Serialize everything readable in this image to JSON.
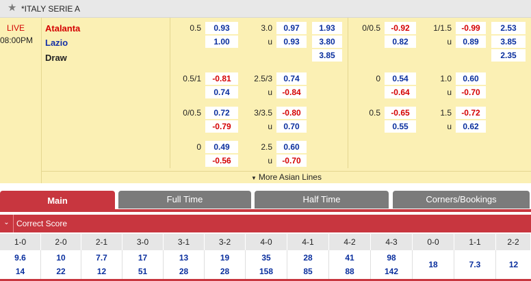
{
  "league": {
    "star_icon": "star-icon",
    "name": "*ITALY SERIE A"
  },
  "match": {
    "status": "LIVE",
    "kickoff": "08:00PM",
    "home": "Atalanta",
    "away": "Lazio",
    "draw": "Draw"
  },
  "odds": {
    "main": {
      "ft_hdp_line": "0.5",
      "ft_hdp_home": "0.93",
      "ft_hdp_away": "1.00",
      "ft_ou_line": "3.0",
      "ft_ou_u": "u",
      "ft_ou_over": "0.97",
      "ft_ou_under": "0.93",
      "ft_1x2_home": "1.93",
      "ft_1x2_away": "3.80",
      "ft_1x2_draw": "3.85",
      "ht_hdp_line": "0/0.5",
      "ht_hdp_home": "-0.92",
      "ht_hdp_away": "0.82",
      "ht_ou_line": "1/1.5",
      "ht_ou_u": "u",
      "ht_ou_over": "-0.99",
      "ht_ou_under": "0.89",
      "ht_1x2_home": "2.53",
      "ht_1x2_away": "3.85",
      "ht_1x2_draw": "2.35"
    },
    "alt": [
      {
        "ft_hdp_line": "0.5/1",
        "ft_hdp_home": "-0.81",
        "ft_hdp_away": "0.74",
        "ft_ou_line": "2.5/3",
        "ft_ou_u": "u",
        "ft_ou_over": "0.74",
        "ft_ou_under": "-0.84",
        "ht_hdp_line": "0",
        "ht_hdp_home": "0.54",
        "ht_hdp_away": "-0.64",
        "ht_ou_line": "1.0",
        "ht_ou_u": "u",
        "ht_ou_over": "0.60",
        "ht_ou_under": "-0.70"
      },
      {
        "ft_hdp_line": "0/0.5",
        "ft_hdp_home": "0.72",
        "ft_hdp_away": "-0.79",
        "ft_ou_line": "3/3.5",
        "ft_ou_u": "u",
        "ft_ou_over": "-0.80",
        "ft_ou_under": "0.70",
        "ht_hdp_line": "0.5",
        "ht_hdp_home": "-0.65",
        "ht_hdp_away": "0.55",
        "ht_ou_line": "1.5",
        "ht_ou_u": "u",
        "ht_ou_over": "-0.72",
        "ht_ou_under": "0.62"
      },
      {
        "ft_hdp_line": "0",
        "ft_hdp_home": "0.49",
        "ft_hdp_away": "-0.56",
        "ft_ou_line": "2.5",
        "ft_ou_u": "u",
        "ft_ou_over": "0.60",
        "ft_ou_under": "-0.70"
      }
    ],
    "more_label": "More Asian Lines"
  },
  "tabs": [
    "Main",
    "Full Time",
    "Half Time",
    "Corners/Bookings"
  ],
  "correct_score": {
    "title": "Correct Score",
    "chevron_icon": "chevron-down-icon",
    "cols": [
      {
        "score": "1-0",
        "home": "9.6",
        "away": "14"
      },
      {
        "score": "2-0",
        "home": "10",
        "away": "22"
      },
      {
        "score": "2-1",
        "home": "7.7",
        "away": "12"
      },
      {
        "score": "3-0",
        "home": "17",
        "away": "51"
      },
      {
        "score": "3-1",
        "home": "13",
        "away": "28"
      },
      {
        "score": "3-2",
        "home": "19",
        "away": "28"
      },
      {
        "score": "4-0",
        "home": "35",
        "away": "158"
      },
      {
        "score": "4-1",
        "home": "28",
        "away": "85"
      },
      {
        "score": "4-2",
        "home": "41",
        "away": "88"
      },
      {
        "score": "4-3",
        "home": "98",
        "away": "142"
      },
      {
        "score": "0-0",
        "single": "18"
      },
      {
        "score": "1-1",
        "single": "7.3"
      },
      {
        "score": "2-2",
        "single": "12"
      }
    ]
  }
}
